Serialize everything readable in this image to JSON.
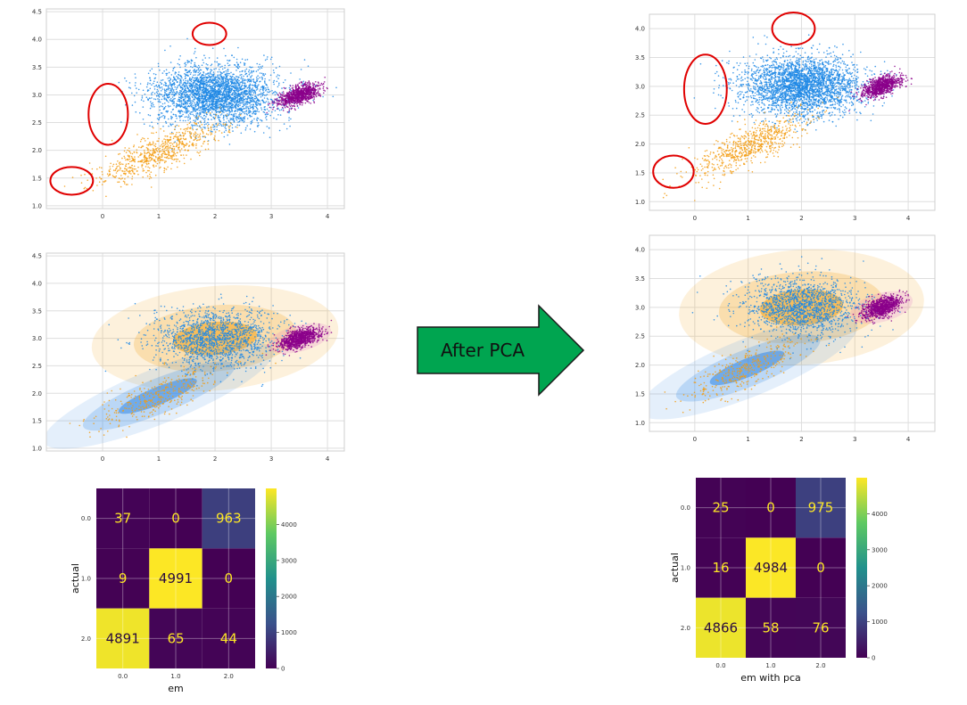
{
  "annotation": {
    "arrow_label": "After PCA",
    "arrow_color": "#00a550",
    "outlier_circle_color": "#e00000"
  },
  "colors": {
    "cluster_blue": "#1e88e5",
    "cluster_orange": "#f39c12",
    "cluster_purple": "#8b008b",
    "ellipse_orange": "#f5a623",
    "ellipse_blue": "#3d8ee6",
    "ellipse_pink": "#e377c2",
    "viridis": [
      "#440154",
      "#3b528b",
      "#21918c",
      "#5ec962",
      "#fde725"
    ]
  },
  "chart_data": [
    {
      "type": "scatter",
      "panel": "original-clusters",
      "xlim": [
        -1,
        4.3
      ],
      "ylim": [
        0.95,
        4.55
      ],
      "xticks": [
        "0",
        "1",
        "2",
        "3",
        "4"
      ],
      "yticks": [
        "1.0",
        "1.5",
        "2.0",
        "2.5",
        "3.0",
        "3.5",
        "4.0",
        "4.5"
      ],
      "grid": true,
      "clusters": [
        {
          "color": "cluster_blue",
          "center": [
            2.0,
            3.0
          ],
          "spread": [
            0.55,
            0.27
          ],
          "count": 3000
        },
        {
          "color": "cluster_orange",
          "center": [
            1.0,
            1.95
          ],
          "spread": [
            0.55,
            0.17
          ],
          "slope": 0.42,
          "count": 700
        },
        {
          "color": "cluster_purple",
          "center": [
            3.5,
            3.0
          ],
          "spread": [
            0.18,
            0.08
          ],
          "slope": 0.3,
          "count": 900
        }
      ],
      "outlier_circles": [
        {
          "center": [
            -0.55,
            1.45
          ],
          "radius": [
            0.38,
            0.25
          ]
        },
        {
          "center": [
            0.1,
            2.65
          ],
          "radius": [
            0.35,
            0.55
          ]
        },
        {
          "center": [
            1.9,
            4.1
          ],
          "radius": [
            0.3,
            0.2
          ]
        }
      ]
    },
    {
      "type": "scatter",
      "panel": "original-em-fit",
      "xlim": [
        -1,
        4.3
      ],
      "ylim": [
        0.95,
        4.55
      ],
      "xticks": [
        "0",
        "1",
        "2",
        "3",
        "4"
      ],
      "yticks": [
        "1.0",
        "1.5",
        "2.0",
        "2.5",
        "3.0",
        "3.5",
        "4.0",
        "4.5"
      ],
      "grid": true,
      "clusters": [
        {
          "color": "cluster_blue",
          "center": [
            2.0,
            3.0
          ],
          "spread": [
            0.55,
            0.27
          ],
          "count": 1500
        },
        {
          "color": "cluster_orange",
          "center": [
            1.0,
            1.95
          ],
          "spread": [
            0.55,
            0.17
          ],
          "slope": 0.42,
          "count": 350
        },
        {
          "color": "cluster_purple",
          "center": [
            3.5,
            3.0
          ],
          "spread": [
            0.18,
            0.08
          ],
          "slope": 0.3,
          "count": 900
        }
      ],
      "ellipses": [
        {
          "color": "ellipse_orange",
          "center": [
            2.0,
            3.0
          ],
          "radius": [
            2.2,
            0.95
          ],
          "angle": 5,
          "opacity": 0.16
        },
        {
          "color": "ellipse_orange",
          "center": [
            2.0,
            3.0
          ],
          "radius": [
            1.45,
            0.6
          ],
          "angle": 5,
          "opacity": 0.25
        },
        {
          "color": "ellipse_orange",
          "center": [
            2.0,
            3.0
          ],
          "radius": [
            0.75,
            0.3
          ],
          "angle": 5,
          "opacity": 0.6
        },
        {
          "color": "ellipse_blue",
          "center": [
            1.0,
            1.95
          ],
          "radius": [
            2.2,
            0.5
          ],
          "angle": 22,
          "opacity": 0.14
        },
        {
          "color": "ellipse_blue",
          "center": [
            1.0,
            1.95
          ],
          "radius": [
            1.45,
            0.32
          ],
          "angle": 22,
          "opacity": 0.25
        },
        {
          "color": "ellipse_blue",
          "center": [
            0.98,
            1.95
          ],
          "radius": [
            0.75,
            0.16
          ],
          "angle": 22,
          "opacity": 0.6
        },
        {
          "color": "ellipse_pink",
          "center": [
            3.5,
            3.0
          ],
          "radius": [
            0.58,
            0.24
          ],
          "angle": 15,
          "opacity": 0.2
        },
        {
          "color": "ellipse_pink",
          "center": [
            3.5,
            3.0
          ],
          "radius": [
            0.32,
            0.12
          ],
          "angle": 15,
          "opacity": 0.35
        }
      ]
    },
    {
      "type": "scatter",
      "panel": "pca-clusters",
      "xlim": [
        -0.85,
        4.5
      ],
      "ylim": [
        0.85,
        4.25
      ],
      "xticks": [
        "0",
        "1",
        "2",
        "3",
        "4"
      ],
      "yticks": [
        "1.0",
        "1.5",
        "2.0",
        "2.5",
        "3.0",
        "3.5",
        "4.0"
      ],
      "grid": true,
      "clusters": [
        {
          "color": "cluster_blue",
          "center": [
            2.0,
            3.0
          ],
          "spread": [
            0.55,
            0.26
          ],
          "count": 3000
        },
        {
          "color": "cluster_orange",
          "center": [
            1.0,
            1.95
          ],
          "spread": [
            0.55,
            0.17
          ],
          "slope": 0.42,
          "count": 700
        },
        {
          "color": "cluster_purple",
          "center": [
            3.5,
            3.0
          ],
          "spread": [
            0.18,
            0.08
          ],
          "slope": 0.3,
          "count": 900
        }
      ],
      "outlier_circles": [
        {
          "center": [
            -0.4,
            1.52
          ],
          "radius": [
            0.38,
            0.28
          ]
        },
        {
          "center": [
            0.2,
            2.95
          ],
          "radius": [
            0.4,
            0.6
          ]
        },
        {
          "center": [
            1.85,
            4.0
          ],
          "radius": [
            0.4,
            0.28
          ]
        }
      ]
    },
    {
      "type": "scatter",
      "panel": "pca-em-fit",
      "xlim": [
        -0.85,
        4.5
      ],
      "ylim": [
        0.85,
        4.25
      ],
      "xticks": [
        "0",
        "1",
        "2",
        "3",
        "4"
      ],
      "yticks": [
        "1.0",
        "1.5",
        "2.0",
        "2.5",
        "3.0",
        "3.5",
        "4.0"
      ],
      "grid": true,
      "clusters": [
        {
          "color": "cluster_blue",
          "center": [
            2.0,
            3.0
          ],
          "spread": [
            0.55,
            0.26
          ],
          "count": 1500
        },
        {
          "color": "cluster_orange",
          "center": [
            1.0,
            1.95
          ],
          "spread": [
            0.55,
            0.17
          ],
          "slope": 0.42,
          "count": 350
        },
        {
          "color": "cluster_purple",
          "center": [
            3.5,
            3.0
          ],
          "spread": [
            0.18,
            0.08
          ],
          "slope": 0.3,
          "count": 900
        }
      ],
      "ellipses": [
        {
          "color": "ellipse_orange",
          "center": [
            2.0,
            3.0
          ],
          "radius": [
            2.3,
            1.0
          ],
          "angle": 4,
          "opacity": 0.16
        },
        {
          "color": "ellipse_orange",
          "center": [
            2.0,
            3.0
          ],
          "radius": [
            1.55,
            0.62
          ],
          "angle": 4,
          "opacity": 0.25
        },
        {
          "color": "ellipse_orange",
          "center": [
            2.0,
            3.0
          ],
          "radius": [
            0.78,
            0.31
          ],
          "angle": 4,
          "opacity": 0.6
        },
        {
          "color": "ellipse_blue",
          "center": [
            1.0,
            1.95
          ],
          "radius": [
            2.2,
            0.5
          ],
          "angle": 22,
          "opacity": 0.14
        },
        {
          "color": "ellipse_blue",
          "center": [
            1.0,
            1.95
          ],
          "radius": [
            1.45,
            0.32
          ],
          "angle": 22,
          "opacity": 0.25
        },
        {
          "color": "ellipse_blue",
          "center": [
            0.98,
            1.95
          ],
          "radius": [
            0.75,
            0.16
          ],
          "angle": 22,
          "opacity": 0.6
        },
        {
          "color": "ellipse_pink",
          "center": [
            3.5,
            3.0
          ],
          "radius": [
            0.6,
            0.25
          ],
          "angle": 15,
          "opacity": 0.2
        },
        {
          "color": "ellipse_pink",
          "center": [
            3.5,
            3.0
          ],
          "radius": [
            0.33,
            0.13
          ],
          "angle": 15,
          "opacity": 0.35
        }
      ]
    },
    {
      "type": "heatmap",
      "panel": "confusion-matrix-em",
      "ylabel": "actual",
      "xlabel": "em",
      "row_labels": [
        "0.0",
        "1.0",
        "2.0"
      ],
      "col_labels": [
        "0.0",
        "1.0",
        "2.0"
      ],
      "values": [
        [
          37,
          0,
          963
        ],
        [
          9,
          4991,
          0
        ],
        [
          4891,
          65,
          44
        ]
      ],
      "colorbar_ticks": [
        "0",
        "1000",
        "2000",
        "3000",
        "4000"
      ],
      "colorbar_max": 5000
    },
    {
      "type": "heatmap",
      "panel": "confusion-matrix-em-pca",
      "ylabel": "actual",
      "xlabel": "em with pca",
      "row_labels": [
        "0.0",
        "1.0",
        "2.0"
      ],
      "col_labels": [
        "0.0",
        "1.0",
        "2.0"
      ],
      "values": [
        [
          25,
          0,
          975
        ],
        [
          16,
          4984,
          0
        ],
        [
          4866,
          58,
          76
        ]
      ],
      "colorbar_ticks": [
        "0",
        "1000",
        "2000",
        "3000",
        "4000"
      ],
      "colorbar_max": 5000
    }
  ]
}
